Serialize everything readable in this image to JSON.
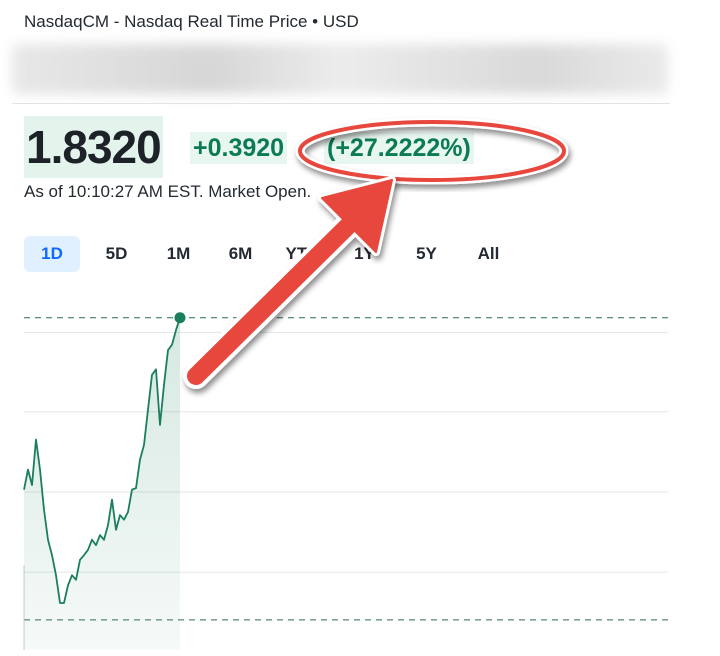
{
  "header": {
    "source": "NasdaqCM - Nasdaq Real Time Price • USD"
  },
  "quote": {
    "price": "1.8320",
    "change": "+0.3920",
    "change_percent": "(+27.2222%)",
    "timestamp": "As of 10:10:27 AM EST. Market Open."
  },
  "range_tabs": [
    "1D",
    "5D",
    "1M",
    "6M",
    "YTD",
    "1Y",
    "5Y",
    "All"
  ],
  "selected_tab": 0,
  "chart_data": {
    "type": "line",
    "color": "#1a7f5a",
    "values": [
      1.609,
      1.635,
      1.615,
      1.674,
      1.635,
      1.583,
      1.544,
      1.524,
      1.498,
      1.462,
      1.462,
      1.485,
      1.498,
      1.492,
      1.518,
      1.524,
      1.531,
      1.544,
      1.537,
      1.55,
      1.544,
      1.563,
      1.596,
      1.557,
      1.576,
      1.57,
      1.58,
      1.609,
      1.611,
      1.648,
      1.667,
      1.713,
      1.758,
      1.765,
      1.693,
      1.745,
      1.79,
      1.797,
      1.816,
      1.832
    ],
    "ylim": [
      1.401,
      1.855
    ],
    "grid_lines": [
      1.502,
      1.606,
      1.71,
      1.813
    ],
    "previous_close": 1.44
  }
}
